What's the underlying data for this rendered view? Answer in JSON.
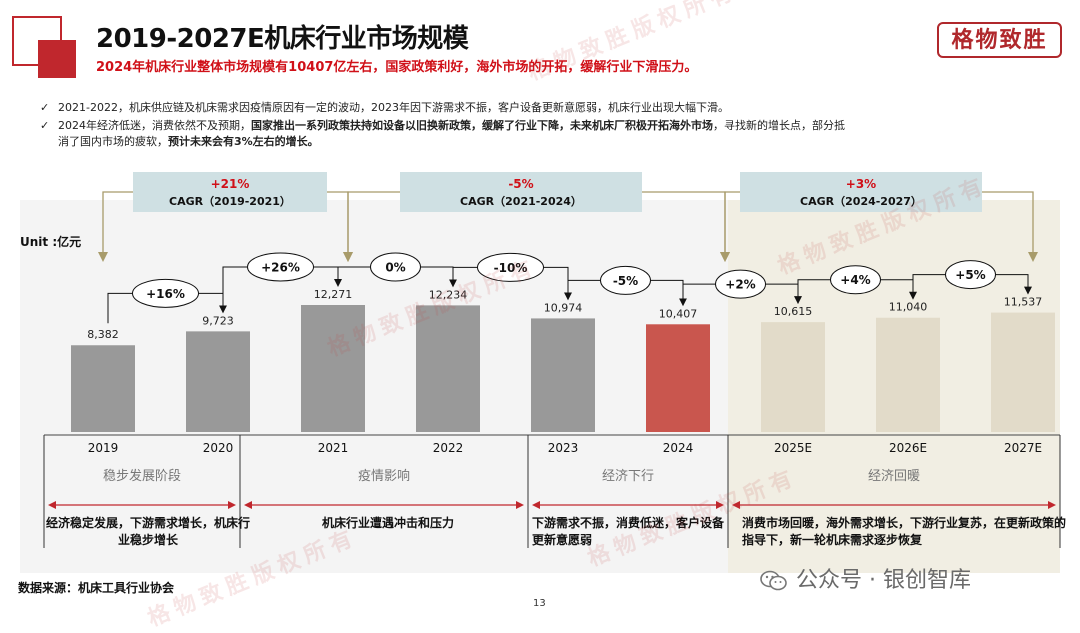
{
  "header": {
    "title": "2019-2027E机床行业市场规模",
    "subtitle": "2024年机床行业整体市场规模有10407亿左右，国家政策利好，海外市场的开拓，缓解行业下滑压力。",
    "logo_text": "格物致胜"
  },
  "bullets": {
    "check_mark": "✓",
    "b1": "2021-2022，机床供应链及机床需求因疫情原因有一定的波动，2023年因下游需求不振，客户设备更新意愿弱，机床行业出现大幅下滑。",
    "b2_pre": "2024年经济低迷，消费依然不及预期，",
    "b2_bold": "国家推出一系列政策扶持如设备以旧换新政策，缓解了行业下降，未来机床厂积极开拓海外市场",
    "b2_post": "，寻找新的增长点，部分抵",
    "b2_cont_pre": "消了国内市场的疲软，",
    "b2_cont_bold": "预计未来会有3%左右的增长。"
  },
  "watermark_text": "格物致胜版权所有",
  "chart_data": {
    "type": "bar",
    "unit_label": "Unit :亿元",
    "categories": [
      "2019",
      "2020",
      "2021",
      "2022",
      "2023",
      "2024",
      "2025E",
      "2026E",
      "2027E"
    ],
    "values": [
      8382,
      9723,
      12271,
      12234,
      10974,
      10407,
      10615,
      11040,
      11537
    ],
    "value_labels": [
      "8,382",
      "9,723",
      "12,271",
      "12,234",
      "10,974",
      "10,407",
      "10,615",
      "11,040",
      "11,537"
    ],
    "ylim": [
      0,
      15000
    ],
    "growth_labels": [
      "+16%",
      "+26%",
      "0%",
      "-10%",
      "-5%",
      "+2%",
      "+4%",
      "+5%"
    ],
    "highlight_index": 5,
    "colors": {
      "bar": "#999999",
      "highlight": "#c9564e",
      "forecast": "#e2dbc9",
      "forecast_bg": "#f1eee3",
      "cagr_box": "#cfe0e3",
      "cagr_value": "#d01018",
      "arrow": "#a89b6a",
      "span_arrow": "#c0272d"
    },
    "cagr": [
      {
        "value": "+21%",
        "label": "CAGR（2019-2021）"
      },
      {
        "value": "-5%",
        "label": "CAGR（2021-2024）"
      },
      {
        "value": "+3%",
        "label": "CAGR（2024-2027）"
      }
    ],
    "phases": [
      {
        "name": "稳步发展阶段",
        "desc": "经济稳定发展，下游需求增长，机床行业稳步增长"
      },
      {
        "name": "疫情影响",
        "desc": "机床行业遭遇冲击和压力"
      },
      {
        "name": "经济下行",
        "desc": "下游需求不振，消费低迷，客户设备更新意愿弱"
      },
      {
        "name": "经济回暖",
        "desc": "消费市场回暖，海外需求增长，下游行业复苏，在更新政策的指导下，新一轮机床需求逐步恢复"
      }
    ]
  },
  "footer": {
    "source": "数据来源：机床工具行业协会",
    "page_number": "13",
    "wechat": "公众号 · 银创智库"
  }
}
